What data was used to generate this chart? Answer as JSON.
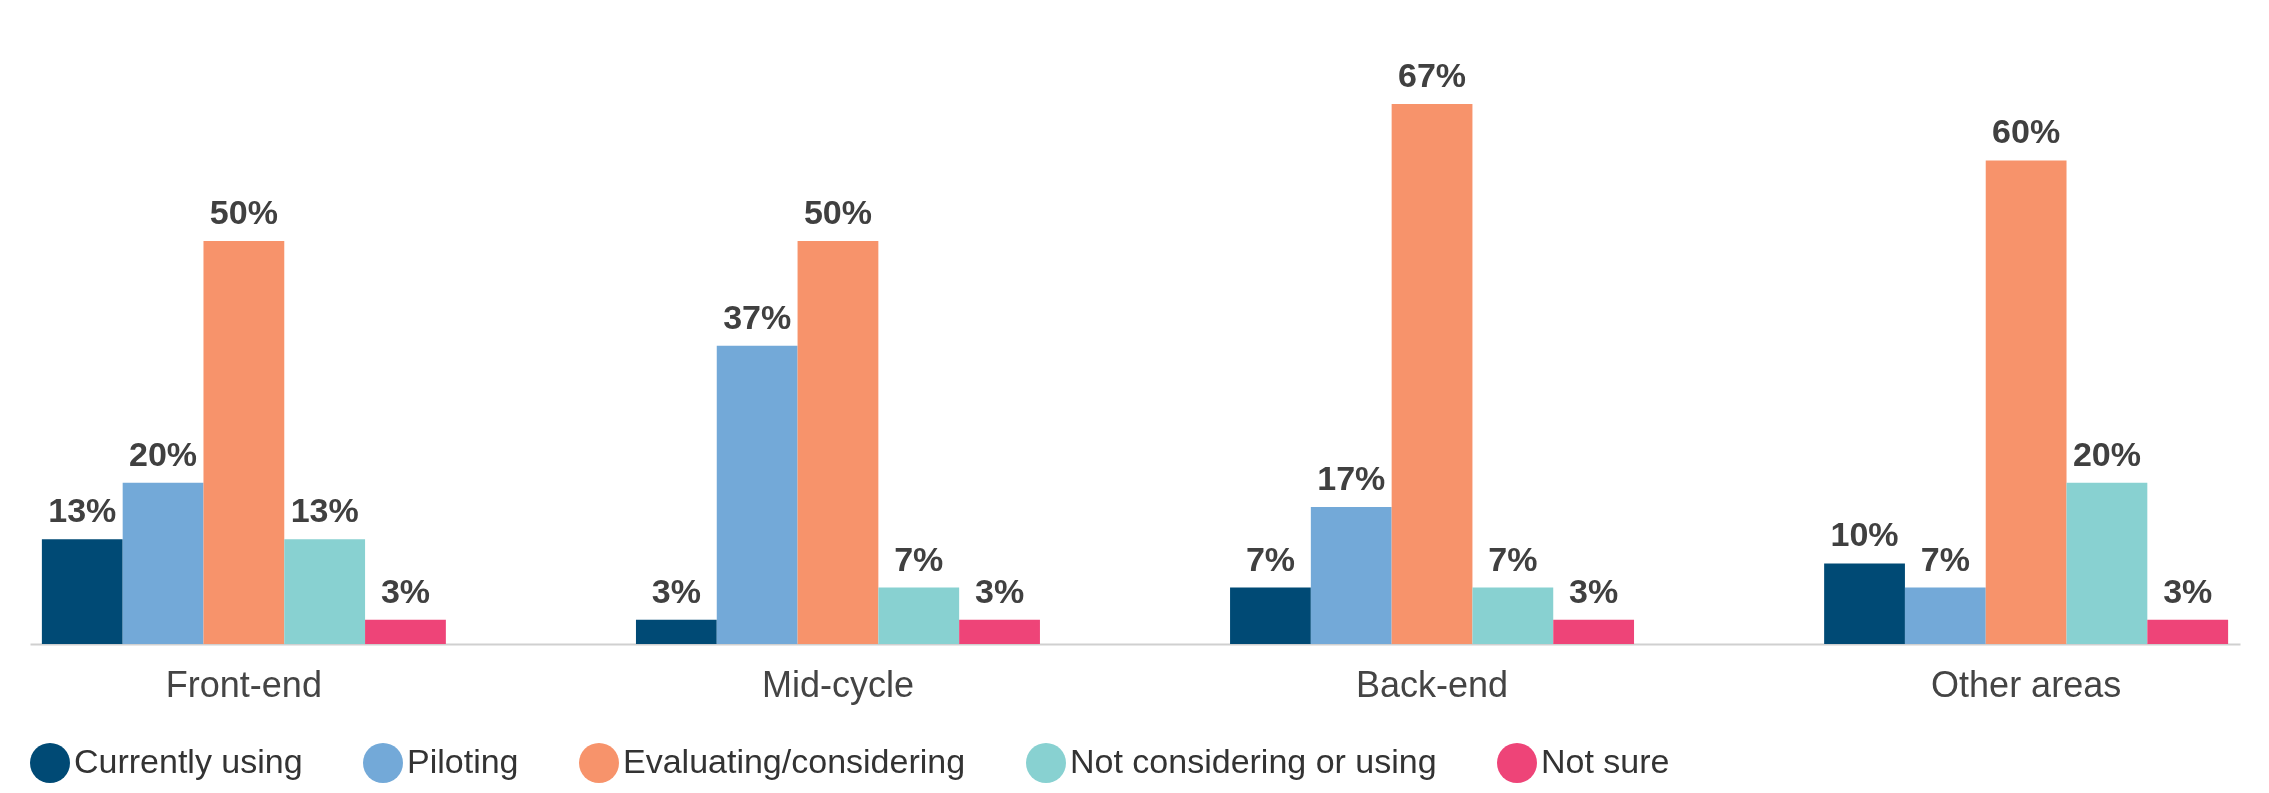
{
  "chart_data": {
    "type": "bar",
    "categories": [
      "Front-end",
      "Mid-cycle",
      "Back-end",
      "Other areas"
    ],
    "legend": "bottom",
    "series": [
      {
        "name": "Currently using",
        "color": "#004a75",
        "values": [
          13,
          3,
          7,
          10
        ],
        "value_labels": [
          "13%",
          "3%",
          "7%",
          "10%"
        ]
      },
      {
        "name": "Piloting",
        "color": "#73a9d8",
        "values": [
          20,
          37,
          17,
          7
        ],
        "value_labels": [
          "20%",
          "37%",
          "17%",
          "7%"
        ]
      },
      {
        "name": "Evaluating/considering",
        "color": "#f7936b",
        "values": [
          50,
          50,
          67,
          60
        ],
        "value_labels": [
          "50%",
          "50%",
          "67%",
          "60%"
        ]
      },
      {
        "name": "Not considering or using",
        "color": "#88d1d1",
        "values": [
          13,
          7,
          7,
          20
        ],
        "value_labels": [
          "13%",
          "7%",
          "7%",
          "20%"
        ]
      },
      {
        "name": "Not sure",
        "color": "#ee4478",
        "values": [
          3,
          3,
          3,
          3
        ],
        "value_labels": [
          "3%",
          "3%",
          "3%",
          "3%"
        ]
      }
    ]
  }
}
